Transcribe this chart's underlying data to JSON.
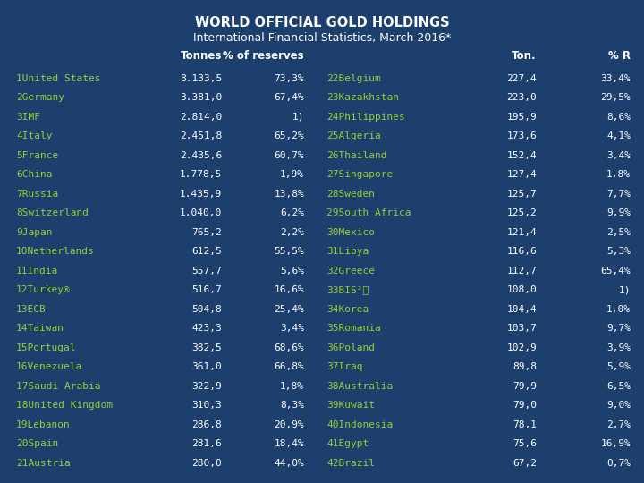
{
  "title1": "WORLD OFFICIAL GOLD HOLDINGS",
  "title2": "International Financial Statistics, March 2016*",
  "bg_color": "#1c3f6e",
  "country_color": "#9acd32",
  "data_color": "#ffffff",
  "left_data": [
    [
      "1United States",
      "8.133,5",
      "73,3%"
    ],
    [
      "2Germany",
      "3.381,0",
      "67,4%"
    ],
    [
      "3IMF",
      "2.814,0",
      "1)"
    ],
    [
      "4Italy",
      "2.451,8",
      "65,2%"
    ],
    [
      "5France",
      "2.435,6",
      "60,7%"
    ],
    [
      "6China",
      "1.778,5",
      "1,9%"
    ],
    [
      "7Russia",
      "1.435,9",
      "13,8%"
    ],
    [
      "8Switzerland",
      "1.040,0",
      "6,2%"
    ],
    [
      "9Japan",
      "765,2",
      "2,2%"
    ],
    [
      "10Netherlands",
      "612,5",
      "55,5%"
    ],
    [
      "11India",
      "557,7",
      "5,6%"
    ],
    [
      "12Turkey®",
      "516,7",
      "16,6%"
    ],
    [
      "13ECB",
      "504,8",
      "25,4%"
    ],
    [
      "14Taiwan",
      "423,3",
      "3,4%"
    ],
    [
      "15Portugal",
      "382,5",
      "68,6%"
    ],
    [
      "16Venezuela",
      "361,0",
      "66,8%"
    ],
    [
      "17Saudi Arabia",
      "322,9",
      "1,8%"
    ],
    [
      "18United Kingdom",
      "310,3",
      "8,3%"
    ],
    [
      "19Lebanon",
      "286,8",
      "20,9%"
    ],
    [
      "20Spain",
      "281,6",
      "18,4%"
    ],
    [
      "21Austria",
      "280,0",
      "44,0%"
    ]
  ],
  "right_data": [
    [
      "22Belgium",
      "227,4",
      "33,4%"
    ],
    [
      "23Kazakhstan",
      "223,0",
      "29,5%"
    ],
    [
      "24Philippines",
      "195,9",
      "8,6%"
    ],
    [
      "25Algeria",
      "173,6",
      "4,1%"
    ],
    [
      "26Thailand",
      "152,4",
      "3,4%"
    ],
    [
      "27Singapore",
      "127,4",
      "1,8%"
    ],
    [
      "28Sweden",
      "125,7",
      "7,7%"
    ],
    [
      "29South Africa",
      "125,2",
      "9,9%"
    ],
    [
      "30Mexico",
      "121,4",
      "2,5%"
    ],
    [
      "31Libya",
      "116,6",
      "5,3%"
    ],
    [
      "32Greece",
      "112,7",
      "65,4%"
    ],
    [
      "33BIS²⧠",
      "108,0",
      "1)"
    ],
    [
      "34Korea",
      "104,4",
      "1,0%"
    ],
    [
      "35Romania",
      "103,7",
      "9,7%"
    ],
    [
      "36Poland",
      "102,9",
      "3,9%"
    ],
    [
      "37Iraq",
      "89,8",
      "5,9%"
    ],
    [
      "38Australia",
      "79,9",
      "6,5%"
    ],
    [
      "39Kuwait",
      "79,0",
      "9,0%"
    ],
    [
      "40Indonesia",
      "78,1",
      "2,7%"
    ],
    [
      "41Egypt",
      "75,6",
      "16,9%"
    ],
    [
      "42Brazil",
      "67,2",
      "0,7%"
    ]
  ],
  "title1_fontsize": 10.5,
  "title2_fontsize": 9.0,
  "header_fontsize": 8.5,
  "data_fontsize": 8.0
}
